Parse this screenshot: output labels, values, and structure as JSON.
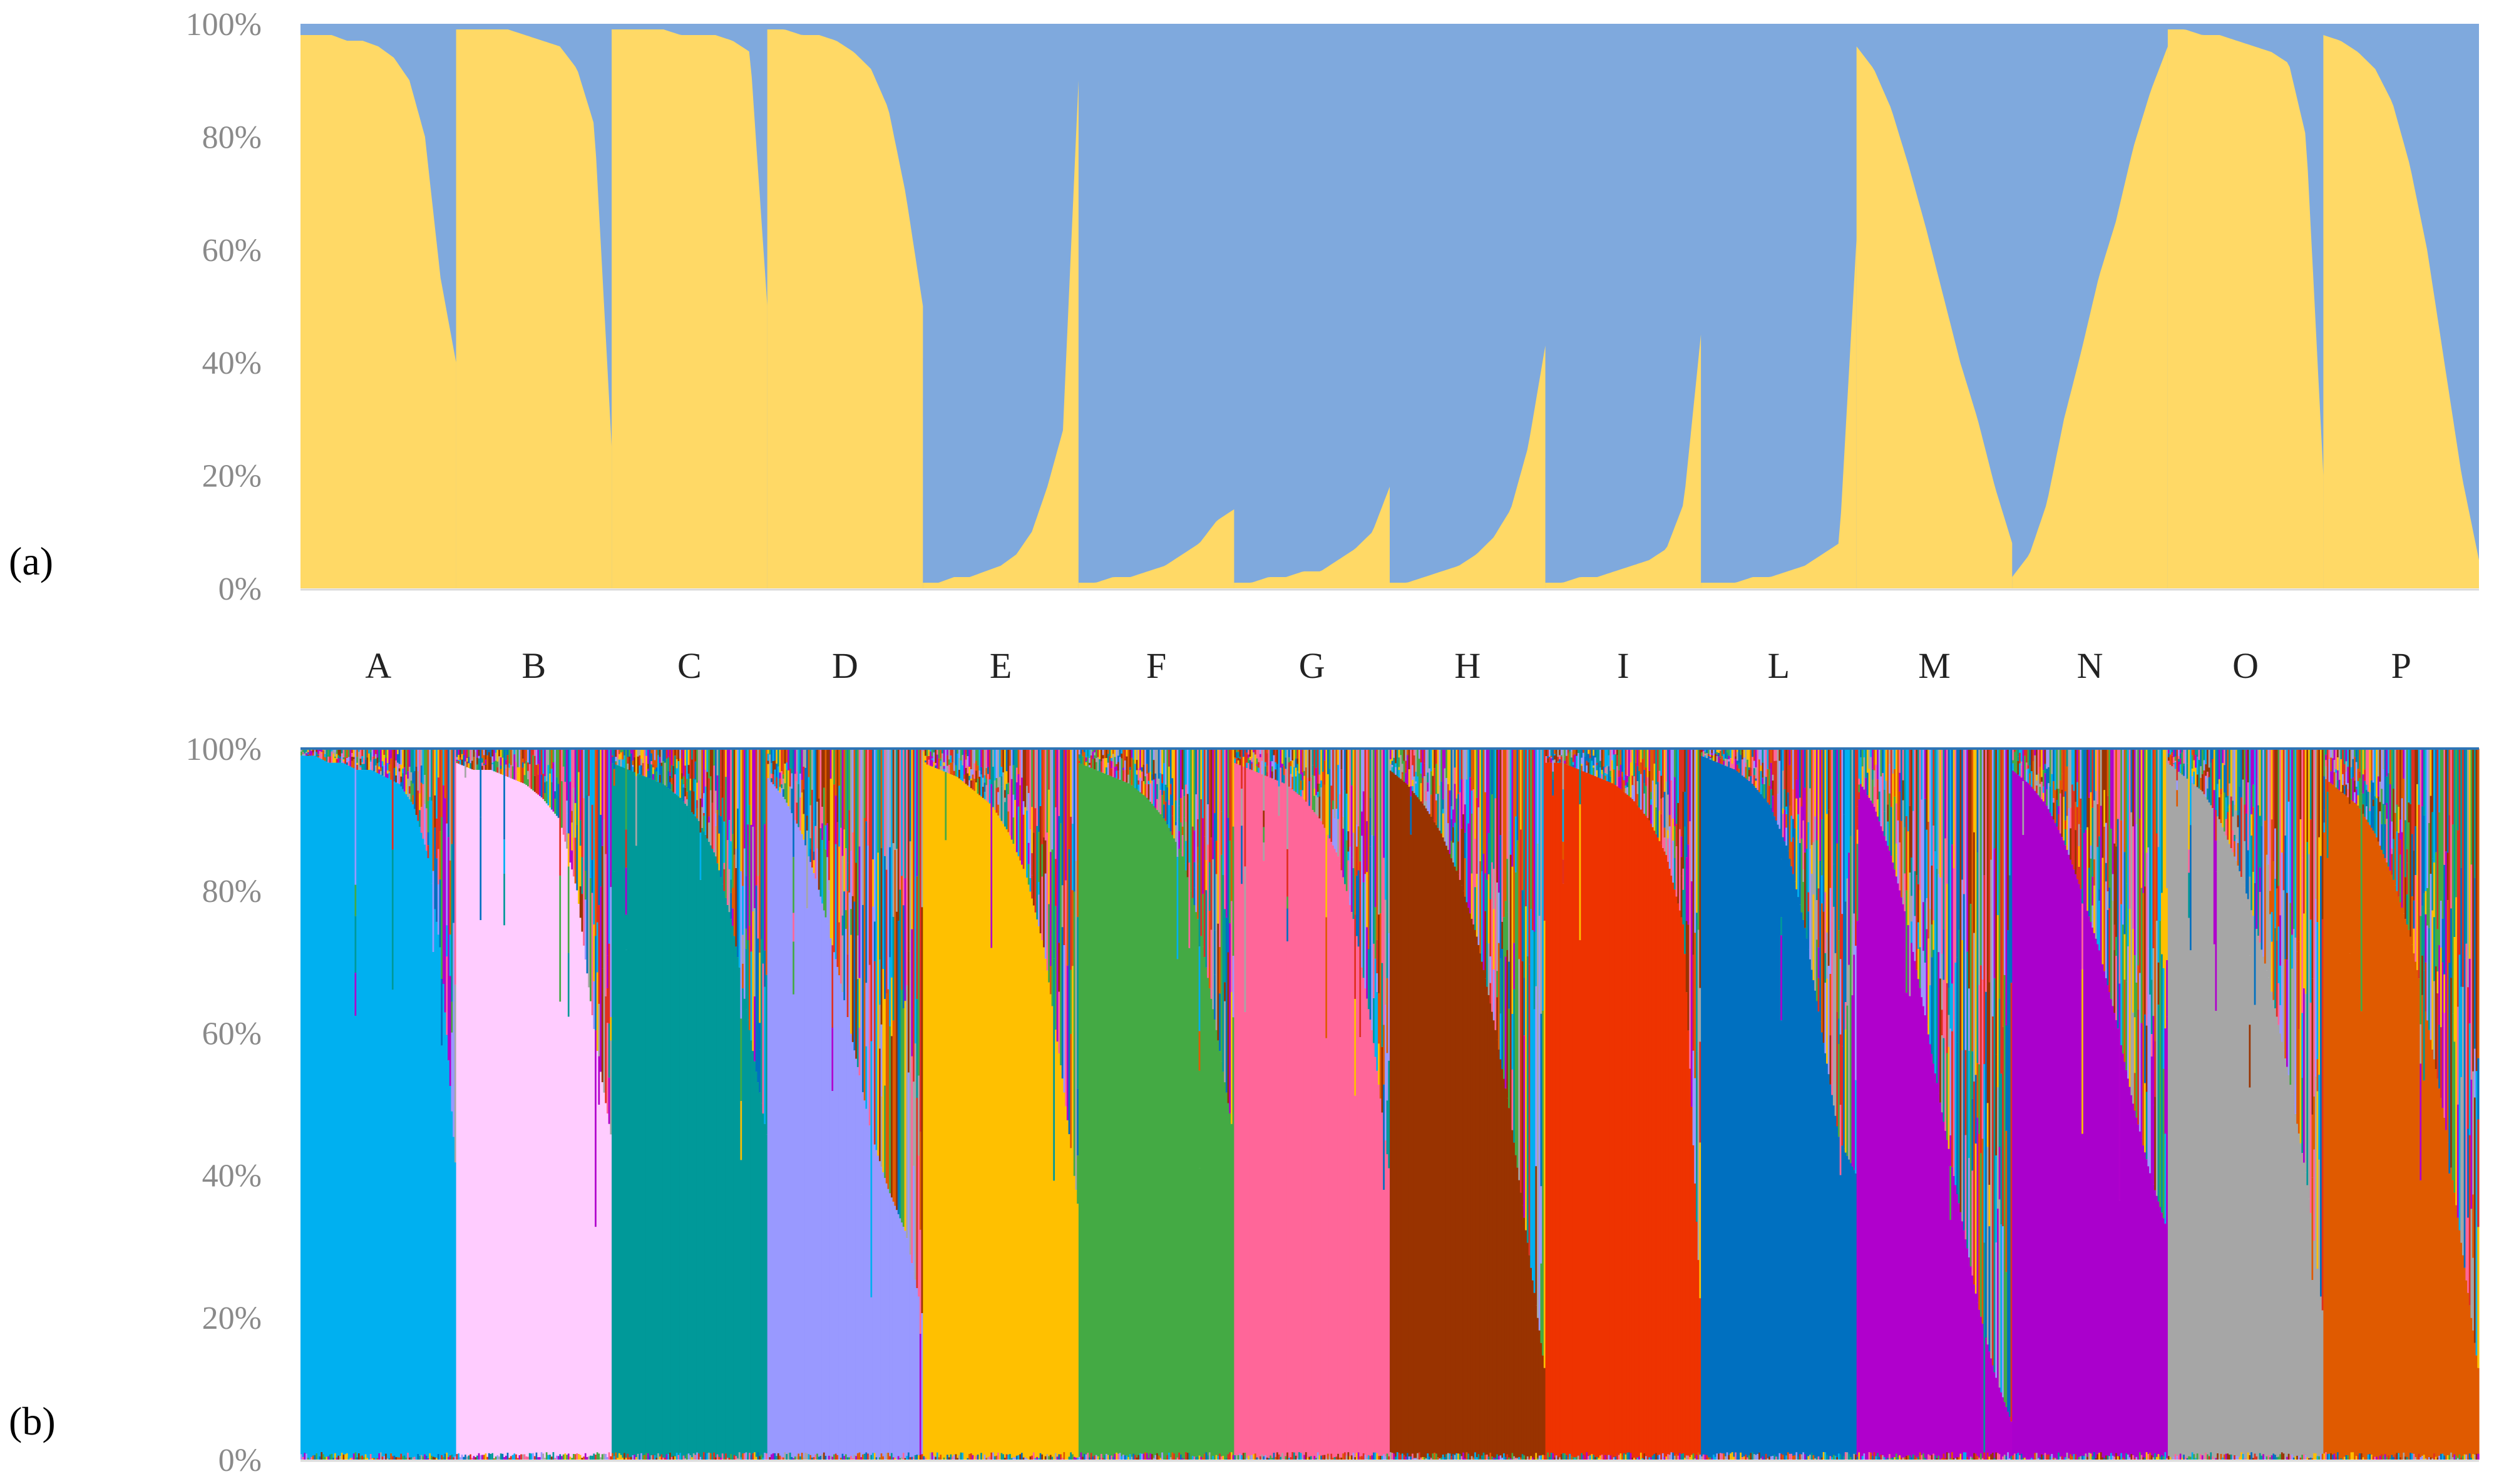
{
  "panel_labels": [
    "(a)",
    "(b)"
  ],
  "chart_data": [
    {
      "type": "bar",
      "stacked": true,
      "normalized_100": true,
      "panel": "(a)",
      "categories": [
        "A",
        "B",
        "C",
        "D",
        "E",
        "F",
        "G",
        "H",
        "I",
        "L",
        "M",
        "N",
        "O",
        "P"
      ],
      "yticks": [
        "0%",
        "20%",
        "40%",
        "60%",
        "80%",
        "100%"
      ],
      "ylim": [
        0,
        100
      ],
      "grid": false,
      "colors": [
        "#FFD966",
        "#7FA9DD"
      ],
      "cluster1_percent_by_population": [
        [
          98,
          98,
          98,
          97,
          97,
          96,
          94,
          90,
          80,
          55,
          40
        ],
        [
          99,
          99,
          99,
          99,
          98,
          97,
          96,
          92,
          82,
          25
        ],
        [
          99,
          99,
          99,
          99,
          98,
          98,
          98,
          97,
          95,
          50
        ],
        [
          99,
          99,
          98,
          98,
          97,
          95,
          92,
          85,
          70,
          50
        ],
        [
          1,
          1,
          2,
          2,
          3,
          4,
          6,
          10,
          18,
          28,
          90
        ],
        [
          1,
          1,
          2,
          2,
          3,
          4,
          6,
          8,
          12,
          14
        ],
        [
          1,
          1,
          2,
          2,
          3,
          3,
          5,
          7,
          10,
          18
        ],
        [
          1,
          1,
          2,
          3,
          4,
          6,
          9,
          14,
          25,
          43
        ],
        [
          1,
          1,
          2,
          2,
          3,
          4,
          5,
          7,
          15,
          45
        ],
        [
          1,
          1,
          1,
          2,
          2,
          3,
          4,
          6,
          8,
          62
        ],
        [
          96,
          92,
          85,
          75,
          64,
          52,
          40,
          30,
          18,
          8
        ],
        [
          2,
          6,
          15,
          30,
          42,
          55,
          65,
          78,
          88,
          96
        ],
        [
          99,
          99,
          98,
          98,
          97,
          96,
          95,
          93,
          80,
          20
        ],
        [
          98,
          97,
          95,
          92,
          86,
          75,
          60,
          40,
          20,
          5
        ]
      ]
    },
    {
      "type": "bar",
      "stacked": true,
      "normalized_100": true,
      "panel": "(b)",
      "categories": [
        "A",
        "B",
        "C",
        "D",
        "E",
        "F",
        "G",
        "H",
        "I",
        "L",
        "M",
        "N",
        "O",
        "P"
      ],
      "yticks": [
        "0%",
        "20%",
        "40%",
        "60%",
        "80%",
        "100%"
      ],
      "ylim": [
        0,
        100
      ],
      "grid": false,
      "population_colors": [
        "#00B0F0",
        "#FFCCFF",
        "#009999",
        "#9999FF",
        "#FFC000",
        "#44AA44",
        "#FF6699",
        "#993300",
        "#EE3300",
        "#0070C0",
        "#B000CC",
        "#AA00CC",
        "#A6A6A6",
        "#E05A00"
      ],
      "admixture_colors": [
        "#E03020",
        "#00B0F0",
        "#9999FF",
        "#FFC000",
        "#009999",
        "#B000CC",
        "#E05A00",
        "#993300",
        "#44AA44",
        "#FF6699",
        "#0070C0",
        "#A6A6A6"
      ],
      "dominant_percent_by_population": [
        [
          99,
          99,
          98,
          98,
          97,
          97,
          96,
          95,
          92,
          85,
          70,
          40
        ],
        [
          98,
          97,
          97,
          96,
          95,
          93,
          90,
          80,
          60,
          45
        ],
        [
          98,
          97,
          96,
          95,
          93,
          90,
          85,
          75,
          60,
          45
        ],
        [
          96,
          93,
          88,
          80,
          70,
          58,
          46,
          38,
          32,
          20
        ],
        [
          98,
          97,
          96,
          94,
          92,
          88,
          82,
          72,
          55,
          35
        ],
        [
          98,
          97,
          96,
          95,
          93,
          90,
          85,
          75,
          60,
          45
        ],
        [
          98,
          97,
          96,
          95,
          93,
          90,
          85,
          75,
          60,
          40
        ],
        [
          97,
          95,
          92,
          88,
          82,
          74,
          62,
          48,
          30,
          12
        ],
        [
          98,
          98,
          97,
          96,
          95,
          93,
          90,
          85,
          75,
          20
        ],
        [
          99,
          98,
          97,
          95,
          92,
          86,
          75,
          60,
          45,
          40
        ],
        [
          96,
          92,
          85,
          75,
          62,
          48,
          35,
          22,
          12,
          5
        ],
        [
          97,
          95,
          92,
          87,
          80,
          72,
          62,
          50,
          40,
          32
        ],
        [
          98,
          96,
          94,
          90,
          84,
          76,
          66,
          54,
          40,
          20
        ],
        [
          96,
          94,
          92,
          88,
          82,
          74,
          62,
          48,
          30,
          12
        ]
      ]
    }
  ]
}
